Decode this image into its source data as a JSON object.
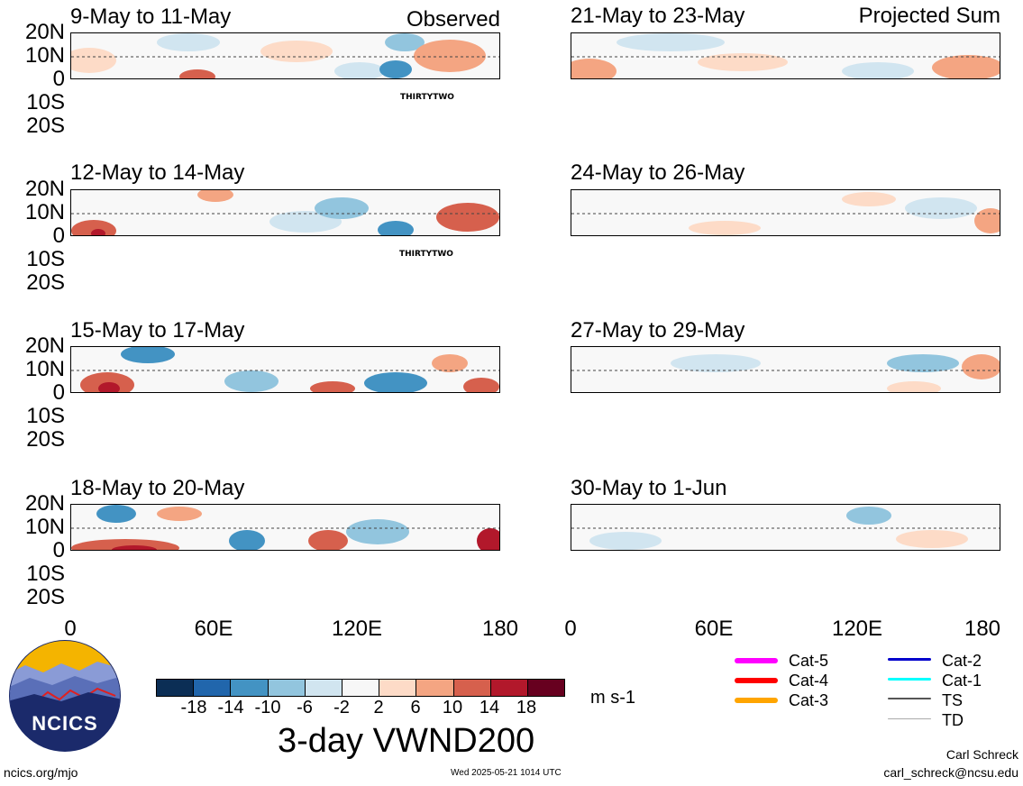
{
  "header": {
    "left_label": "Observed",
    "right_label": "Projected Sum"
  },
  "panels_left": [
    {
      "period": "9-May to 11-May",
      "storm": "THIRTYTWO"
    },
    {
      "period": "12-May to 14-May",
      "storm": "THIRTYTWO"
    },
    {
      "period": "15-May to 17-May",
      "storm": ""
    },
    {
      "period": "18-May to 20-May",
      "storm": ""
    }
  ],
  "panels_right": [
    {
      "period": "21-May to 23-May"
    },
    {
      "period": "24-May to 26-May"
    },
    {
      "period": "27-May to 29-May"
    },
    {
      "period": "30-May to 1-Jun"
    }
  ],
  "y_axis": [
    "20N",
    "10N",
    "0",
    "10S",
    "20S"
  ],
  "x_axis": [
    "0",
    "60E",
    "120E",
    "180"
  ],
  "colorbar": {
    "ticks": [
      "-18",
      "-14",
      "-10",
      "-6",
      "-2",
      "2",
      "6",
      "10",
      "14",
      "18"
    ],
    "colors": [
      "#0b2e55",
      "#2166ac",
      "#4393c3",
      "#92c5de",
      "#d1e5f0",
      "#f7f7f7",
      "#fddbc7",
      "#f4a582",
      "#d6604d",
      "#b2182b",
      "#67001f"
    ],
    "units": "m s-1",
    "title": "3-day VWND200"
  },
  "legend": [
    {
      "label": "Cat-5",
      "color": "#ff00ff"
    },
    {
      "label": "Cat-4",
      "color": "#ff0000"
    },
    {
      "label": "Cat-3",
      "color": "#ffa500"
    },
    {
      "label": "Cat-2",
      "color": "#0000cc"
    },
    {
      "label": "Cat-1",
      "color": "#00ffff"
    },
    {
      "label": "TS",
      "color": "#555555"
    },
    {
      "label": "TD",
      "color": "#aaaaaa"
    }
  ],
  "logo": {
    "text": "NCICS"
  },
  "footer": {
    "url": "ncics.org/mjo",
    "timestamp": "Wed 2025-05-21 1014 UTC",
    "author": "Carl Schreck",
    "email": "carl_schreck@ncsu.edu"
  }
}
